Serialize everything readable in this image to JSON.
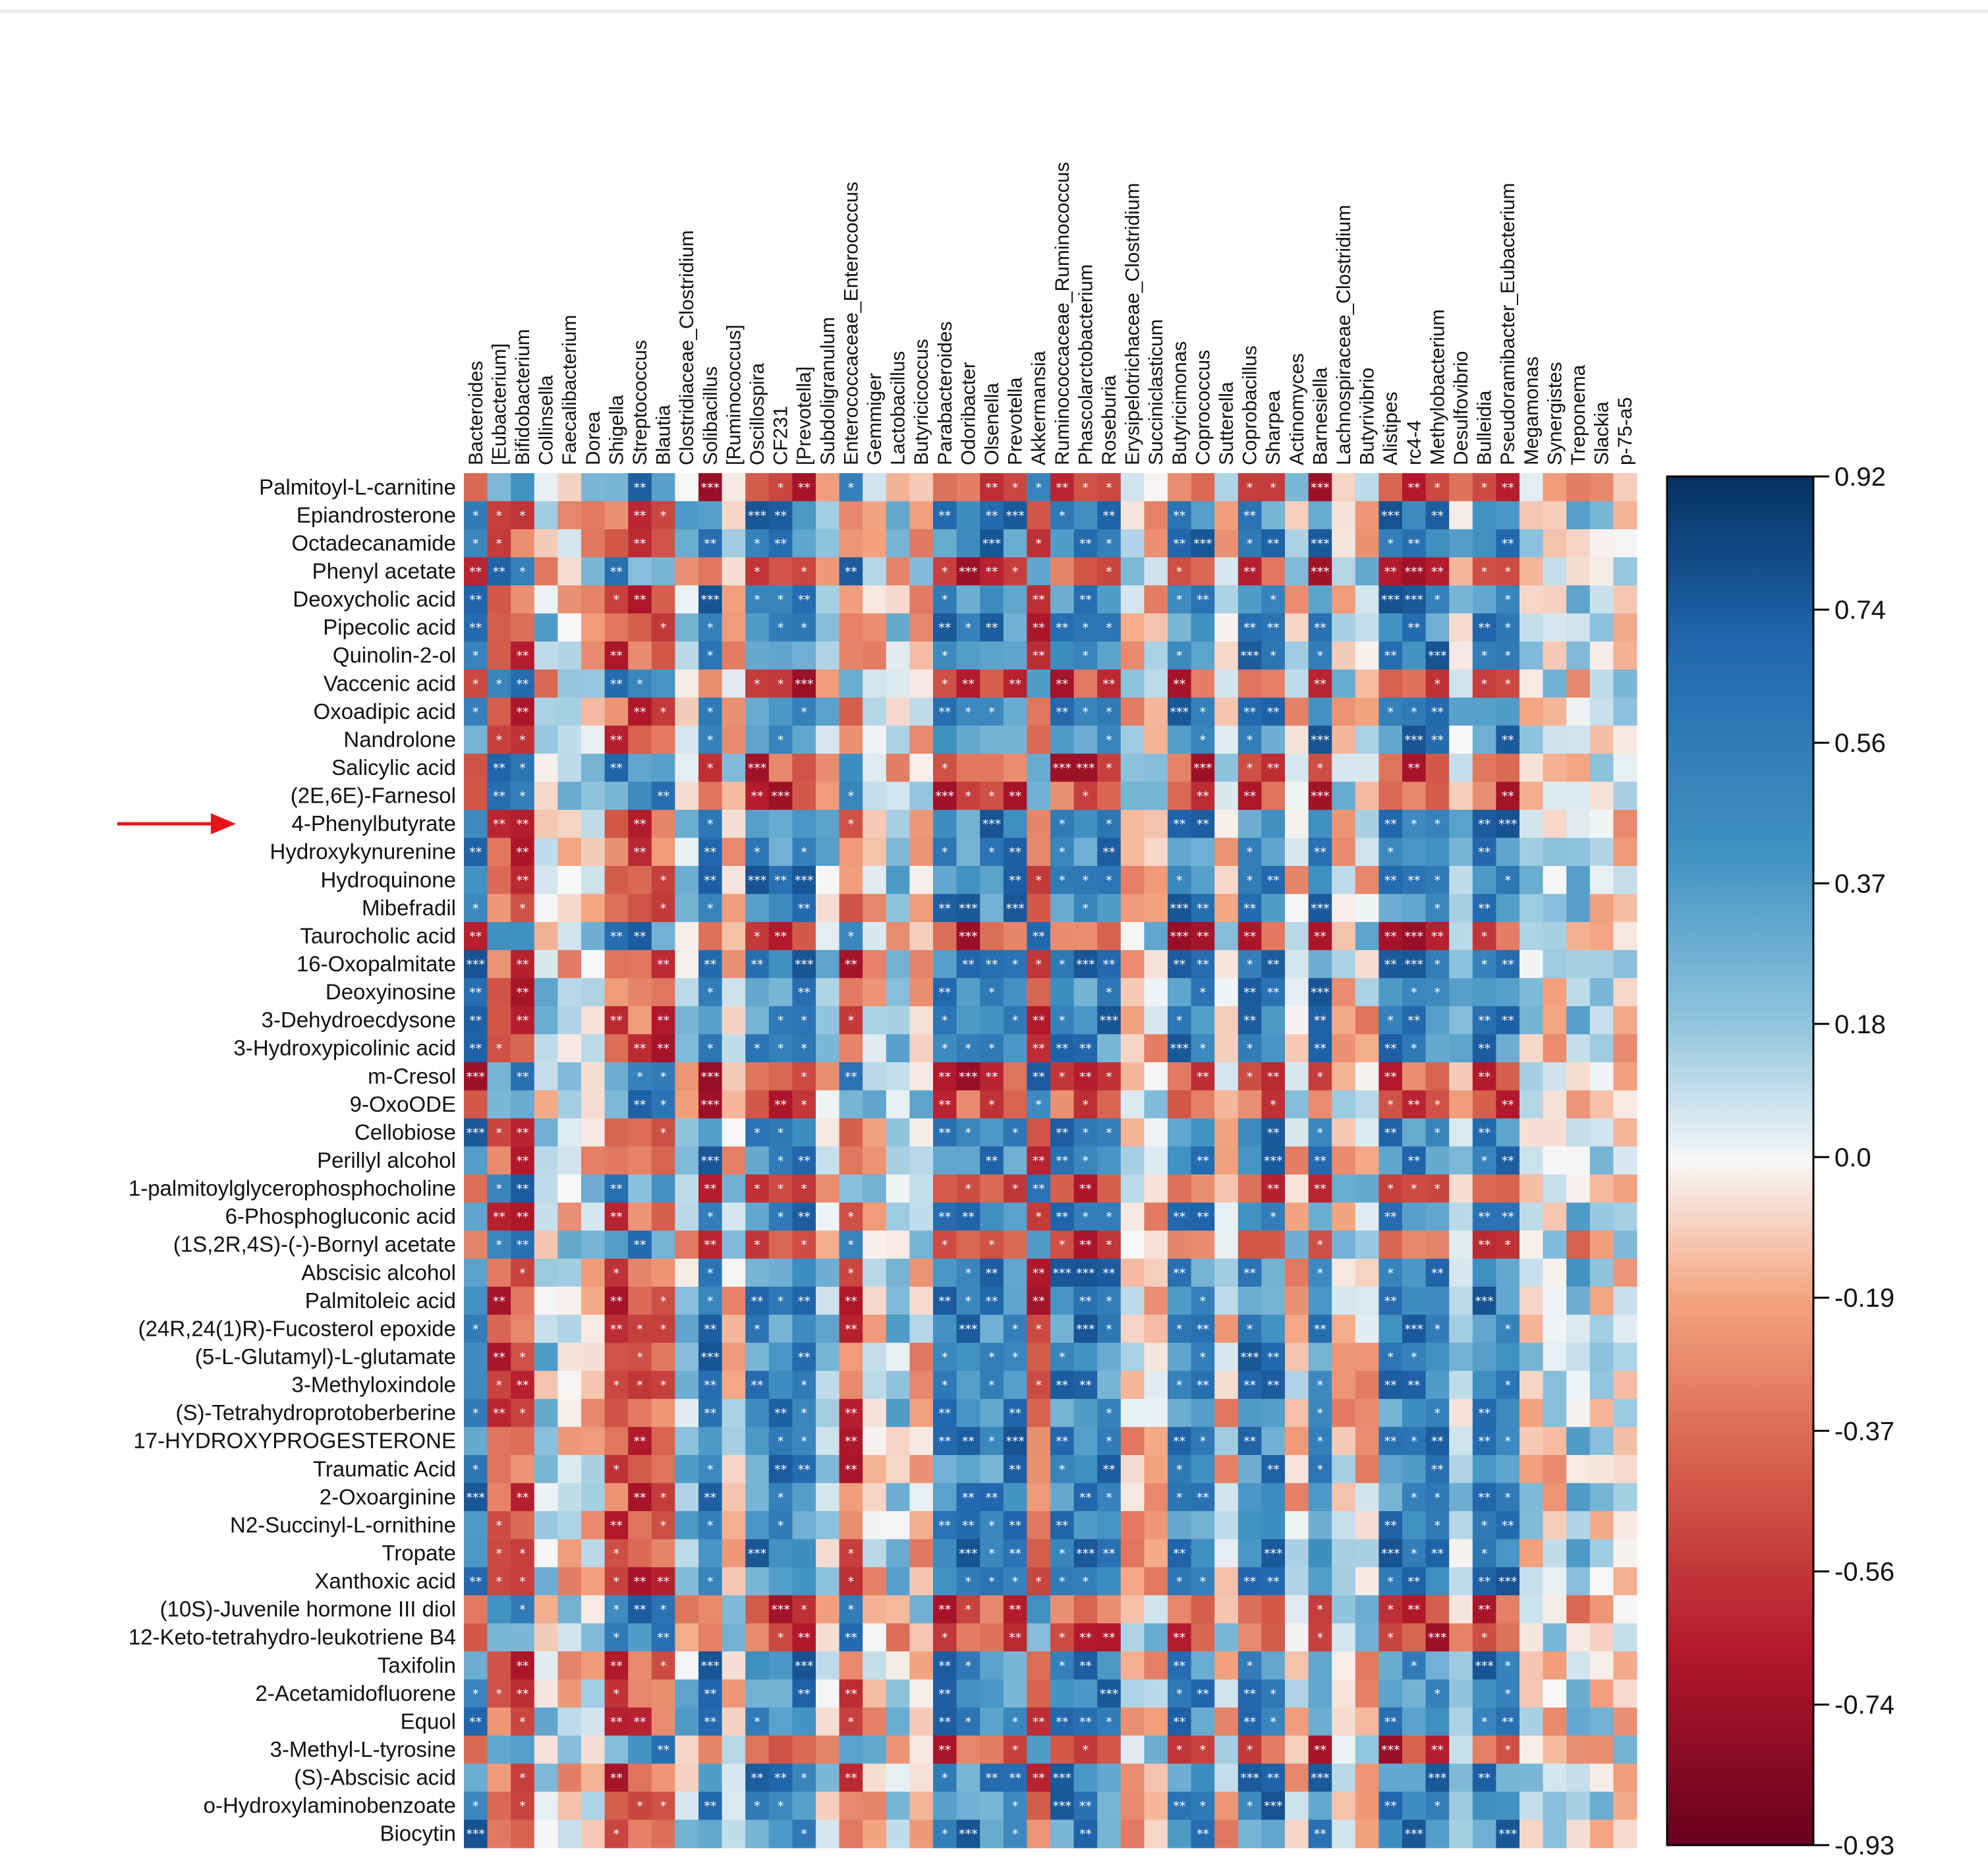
{
  "chart_data": {
    "type": "heatmap",
    "title": "",
    "x_labels": [
      "Bacteroides",
      "[Eubacterium]",
      "Bifidobacterium",
      "Collinsella",
      "Faecalibacterium",
      "Dorea",
      "Shigella",
      "Streptococcus",
      "Blautia",
      "Clostridiaceae_Clostridium",
      "Solibacillus",
      "[Ruminococcus]",
      "Oscillospira",
      "CF231",
      "[Prevotella]",
      "Subdoligranulum",
      "Enterococcaceae_Enterococcus",
      "Gemmiger",
      "Lactobacillus",
      "Butyricicoccus",
      "Parabacteroides",
      "Odoribacter",
      "Olsenella",
      "Prevotella",
      "Akkermansia",
      "Ruminococcaceae_Ruminococcus",
      "Phascolarctobacterium",
      "Roseburia",
      "Erysipelotrichaceae_Clostridium",
      "Succiniclasticum",
      "Butyricimonas",
      "Coprococcus",
      "Sutterella",
      "Coprobacillus",
      "Sharpea",
      "Actinomyces",
      "Barnesiella",
      "Lachnospiraceae_Clostridium",
      "Butyrivibrio",
      "Alistipes",
      "rc4-4",
      "Methylobacterium",
      "Desulfovibrio",
      "Bulleidia",
      "Pseudoramibacter_Eubacterium",
      "Megamonas",
      "Synergistes",
      "Treponema",
      "Slackia",
      "p-75-a5"
    ],
    "y_labels": [
      "Palmitoyl-L-carnitine",
      "Epiandrosterone",
      "Octadecanamide",
      "Phenyl acetate",
      "Deoxycholic acid",
      "Pipecolic acid",
      "Quinolin-2-ol",
      "Vaccenic acid",
      "Oxoadipic acid",
      "Nandrolone",
      "Salicylic acid",
      "(2E,6E)-Farnesol",
      "4-Phenylbutyrate",
      "Hydroxykynurenine",
      "Hydroquinone",
      "Mibefradil",
      "Taurocholic acid",
      "16-Oxopalmitate",
      "Deoxyinosine",
      "3-Dehydroecdysone",
      "3-Hydroxypicolinic acid",
      "m-Cresol",
      "9-OxoODE",
      "Cellobiose",
      "Perillyl alcohol",
      "1-palmitoylglycerophosphocholine",
      "6-Phosphogluconic acid",
      "(1S,2R,4S)-(-)-Bornyl acetate",
      "Abscisic alcohol",
      "Palmitoleic acid",
      "(24R,24(1)R)-Fucosterol epoxide",
      "(5-L-Glutamyl)-L-glutamate",
      "3-Methyloxindole",
      "(S)-Tetrahydroprotoberberine",
      "17-HYDROXYPROGESTERONE",
      "Traumatic Acid",
      "2-Oxoarginine",
      "N2-Succinyl-L-ornithine",
      "Tropate",
      "Xanthoxic acid",
      "(10S)-Juvenile hormone III diol",
      "12-Keto-tetrahydro-leukotriene B4",
      "Taxifolin",
      "2-Acetamidofluorene",
      "Equol",
      "3-Methyl-L-tyrosine",
      "(S)-Abscisic acid",
      "o-Hydroxylaminobenzoate",
      "Biocytin"
    ],
    "negative_rows": [
      "Palmitoyl-L-carnitine",
      "Phenyl acetate",
      "Vaccenic acid",
      "Salicylic acid",
      "(2E,6E)-Farnesol",
      "Taurocholic acid",
      "m-Cresol",
      "9-OxoODE",
      "1-palmitoylglycerophosphocholine",
      "(1S,2R,4S)-(-)-Bornyl acetate",
      "(10S)-Juvenile hormone III diol",
      "12-Keto-tetrahydro-leukotriene B4",
      "3-Methyl-L-tyrosine"
    ],
    "positive_cols": [
      "Bacteroides",
      "Solibacillus",
      "Oscillospira",
      "CF231",
      "[Prevotella]",
      "Parabacteroides",
      "Odoribacter",
      "Olsenella",
      "Prevotella",
      "Ruminococcaceae_Ruminococcus",
      "Phascolarctobacterium",
      "Roseburia",
      "Butyricimonas",
      "Coprococcus",
      "Coprobacillus",
      "Sharpea",
      "Barnesiella",
      "Alistipes",
      "rc4-4",
      "Methylobacterium",
      "Bulleidia",
      "Pseudoramibacter_Eubacterium",
      "Treponema"
    ],
    "negative_cols": [
      "[Eubacterium]",
      "Bifidobacterium",
      "Shigella",
      "Streptococcus",
      "Blautia",
      "Enterococcaceae_Enterococcus",
      "Akkermansia"
    ],
    "highlighted_row": "4-Phenylbutyrate",
    "colorbar": {
      "min": -0.93,
      "max": 0.92,
      "ticks": [
        0.92,
        0.74,
        0.56,
        0.37,
        0.18,
        0.0,
        -0.19,
        -0.37,
        -0.56,
        -0.74,
        -0.93
      ],
      "tick_labels": [
        "0.92",
        "0.74",
        "0.56",
        "0.37",
        "0.18",
        "0.0",
        "-0.19",
        "-0.37",
        "-0.56",
        "-0.74",
        "-0.93"
      ]
    },
    "significance_marker": "*",
    "colors": {
      "negative_end": "#67001f",
      "negative_mid": "#d6604d",
      "neutral": "#f7f7f7",
      "positive_mid": "#4393c3",
      "positive_end": "#053061",
      "arrow": "#e8141b"
    },
    "xlabel": "",
    "ylabel": ""
  }
}
